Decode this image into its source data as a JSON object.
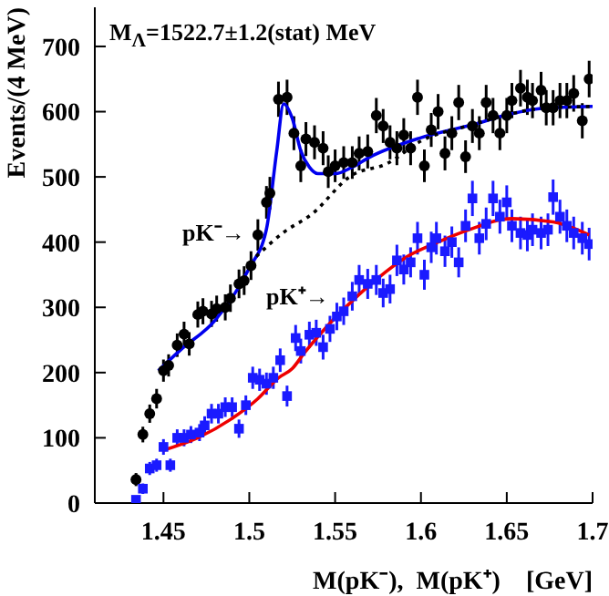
{
  "chart_data": {
    "type": "scatter",
    "xlabel": "M(pK⁻),  M(pK⁺)    [GeV]",
    "ylabel": "Events/(4 MeV)",
    "xlim": [
      1.41,
      1.7
    ],
    "xticks": [
      1.45,
      1.5,
      1.55,
      1.6,
      1.65,
      1.7
    ],
    "ylim": [
      0,
      760
    ],
    "yticks": [
      0,
      100,
      200,
      300,
      400,
      500,
      600,
      700
    ],
    "grid": false,
    "annotations": [
      "M$_{Λ}$=1522.7±1.2(stat) MeV",
      "pK⁻→",
      "pK⁺→"
    ],
    "series": [
      {
        "marker": "circle",
        "color": "#000000",
        "x": [
          1.434,
          1.438,
          1.442,
          1.446,
          1.45,
          1.453,
          1.458,
          1.462,
          1.465,
          1.47,
          1.473,
          1.478,
          1.481,
          1.486,
          1.489,
          1.494,
          1.497,
          1.501,
          1.505,
          1.51,
          1.512,
          1.517,
          1.522,
          1.526,
          1.53,
          1.533,
          1.538,
          1.543,
          1.546,
          1.55,
          1.555,
          1.56,
          1.564,
          1.569,
          1.574,
          1.578,
          1.582,
          1.586,
          1.59,
          1.594,
          1.598,
          1.602,
          1.606,
          1.61,
          1.614,
          1.618,
          1.622,
          1.626,
          1.63,
          1.634,
          1.638,
          1.642,
          1.646,
          1.65,
          1.653,
          1.658,
          1.662,
          1.665,
          1.67,
          1.673,
          1.677,
          1.681,
          1.685,
          1.689,
          1.694,
          1.698
        ],
        "values": [
          36,
          105,
          137,
          160,
          203,
          211,
          242,
          259,
          244,
          289,
          294,
          290,
          298,
          300,
          314,
          336,
          341,
          364,
          411,
          461,
          475,
          619,
          622,
          567,
          517,
          558,
          553,
          544,
          508,
          517,
          522,
          522,
          536,
          539,
          594,
          578,
          553,
          544,
          564,
          544,
          622,
          517,
          572,
          600,
          536,
          567,
          614,
          531,
          578,
          567,
          614,
          594,
          567,
          594,
          617,
          636,
          622,
          617,
          633,
          606,
          606,
          617,
          617,
          628,
          586,
          650
        ],
        "errors": [
          10,
          12,
          14,
          15,
          17,
          17,
          18,
          19,
          18,
          20,
          20,
          20,
          20,
          20,
          21,
          22,
          22,
          22,
          24,
          25,
          25,
          27,
          27,
          26,
          25,
          26,
          26,
          26,
          25,
          25,
          25,
          25,
          26,
          26,
          27,
          26,
          26,
          26,
          26,
          26,
          27,
          25,
          26,
          27,
          26,
          26,
          27,
          25,
          26,
          26,
          27,
          27,
          26,
          27,
          27,
          28,
          27,
          27,
          28,
          27,
          27,
          27,
          27,
          28,
          27,
          28
        ]
      },
      {
        "marker": "square",
        "color": "#1a1aff",
        "x": [
          1.434,
          1.438,
          1.442,
          1.446,
          1.45,
          1.454,
          1.458,
          1.462,
          1.466,
          1.471,
          1.474,
          1.478,
          1.482,
          1.486,
          1.49,
          1.494,
          1.498,
          1.502,
          1.506,
          1.51,
          1.514,
          1.518,
          1.522,
          1.527,
          1.53,
          1.535,
          1.539,
          1.543,
          1.547,
          1.551,
          1.555,
          1.56,
          1.564,
          1.569,
          1.574,
          1.578,
          1.582,
          1.586,
          1.59,
          1.594,
          1.598,
          1.602,
          1.606,
          1.609,
          1.614,
          1.618,
          1.622,
          1.626,
          1.63,
          1.634,
          1.638,
          1.642,
          1.646,
          1.65,
          1.653,
          1.658,
          1.662,
          1.665,
          1.67,
          1.674,
          1.677,
          1.681,
          1.685,
          1.689,
          1.694,
          1.698
        ],
        "values": [
          5,
          22,
          53,
          58,
          86,
          58,
          100,
          100,
          105,
          108,
          119,
          137,
          137,
          147,
          147,
          114,
          150,
          192,
          189,
          183,
          192,
          219,
          164,
          253,
          233,
          258,
          261,
          239,
          267,
          286,
          294,
          317,
          342,
          336,
          342,
          322,
          328,
          372,
          358,
          369,
          406,
          350,
          392,
          406,
          386,
          400,
          369,
          425,
          467,
          406,
          428,
          467,
          439,
          461,
          425,
          414,
          411,
          419,
          414,
          419,
          469,
          439,
          425,
          414,
          406,
          397
        ],
        "errors": [
          5,
          8,
          10,
          10,
          12,
          10,
          13,
          13,
          13,
          13,
          14,
          15,
          15,
          15,
          15,
          14,
          15,
          17,
          17,
          17,
          17,
          18,
          16,
          20,
          19,
          20,
          20,
          19,
          20,
          21,
          21,
          22,
          23,
          23,
          23,
          22,
          22,
          24,
          23,
          23,
          25,
          23,
          24,
          25,
          24,
          24,
          23,
          25,
          27,
          25,
          25,
          27,
          26,
          26,
          25,
          25,
          25,
          25,
          25,
          25,
          27,
          26,
          25,
          25,
          25,
          25
        ]
      },
      {
        "type": "line",
        "color": "#0000ee",
        "line_style": "solid",
        "marker": "none",
        "x": [
          1.447,
          1.46,
          1.48,
          1.5,
          1.51,
          1.516,
          1.52,
          1.525,
          1.53,
          1.535,
          1.54,
          1.55,
          1.56,
          1.57,
          1.6,
          1.63,
          1.65,
          1.67,
          1.7
        ],
        "values": [
          203,
          235,
          280,
          360,
          420,
          540,
          612,
          590,
          540,
          515,
          505,
          505,
          515,
          530,
          560,
          580,
          595,
          605,
          608
        ]
      },
      {
        "type": "line",
        "color": "#000000",
        "line_style": "dotted",
        "marker": "none",
        "x": [
          1.504,
          1.52,
          1.536,
          1.56,
          1.58,
          1.6,
          1.63,
          1.65,
          1.67,
          1.7
        ],
        "values": [
          378,
          415,
          442,
          503,
          520,
          555,
          580,
          595,
          605,
          608
        ]
      },
      {
        "type": "line",
        "color": "#ee0000",
        "line_style": "solid",
        "marker": "none",
        "x": [
          1.45,
          1.47,
          1.489,
          1.505,
          1.517,
          1.525,
          1.532,
          1.545,
          1.56,
          1.575,
          1.592,
          1.61,
          1.628,
          1.653,
          1.677,
          1.698
        ],
        "values": [
          81,
          100,
          128,
          160,
          192,
          206,
          230,
          270,
          310,
          345,
          378,
          400,
          419,
          436,
          431,
          411
        ]
      }
    ]
  }
}
